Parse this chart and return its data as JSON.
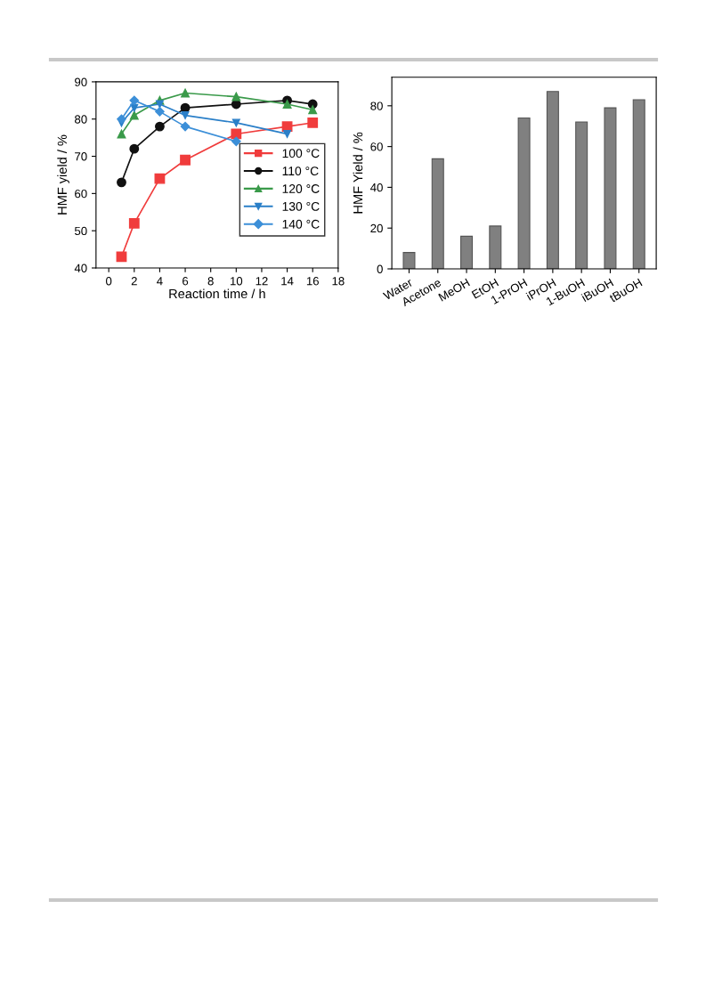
{
  "chart_data": [
    {
      "type": "line",
      "xlabel": "Reaction time / h",
      "ylabel": "HMF yield / %",
      "xlim": [
        -1,
        18
      ],
      "ylim": [
        40,
        90
      ],
      "xticks": [
        0,
        2,
        4,
        6,
        8,
        10,
        12,
        14,
        16,
        18
      ],
      "yticks": [
        40,
        50,
        60,
        70,
        80,
        90
      ],
      "legend": "center right",
      "grid": false,
      "line_style": "solid",
      "series": [
        {
          "name": "100 °C",
          "color": "#f03c3c",
          "marker": "square",
          "x": [
            1,
            2,
            4,
            6,
            10,
            14,
            16
          ],
          "values": [
            43,
            52,
            64,
            69,
            76,
            78,
            79
          ]
        },
        {
          "name": "110 °C",
          "color": "#111111",
          "marker": "circle",
          "x": [
            1,
            2,
            4,
            6,
            10,
            14,
            16
          ],
          "values": [
            63,
            72,
            78,
            83,
            84,
            85,
            84
          ]
        },
        {
          "name": "120 °C",
          "color": "#3a9a4a",
          "marker": "triangle",
          "x": [
            1,
            2,
            4,
            6,
            10,
            14,
            16
          ],
          "values": [
            76,
            81,
            85,
            87,
            86,
            84,
            82.5
          ]
        },
        {
          "name": "130 °C",
          "color": "#2a7fc8",
          "marker": "triangle_down",
          "x": [
            1,
            2,
            4,
            6,
            10,
            14
          ],
          "values": [
            79,
            83,
            84,
            81,
            79,
            76
          ]
        },
        {
          "name": "140 °C",
          "color": "#3c8fd8",
          "marker": "diamond",
          "x": [
            1,
            2,
            4,
            6,
            10
          ],
          "values": [
            80,
            85,
            82,
            78,
            74
          ]
        }
      ]
    },
    {
      "type": "bar",
      "ylabel": "HMF Yield / %",
      "categories": [
        "Water",
        "Acetone",
        "MeOH",
        "EtOH",
        "1-PrOH",
        "iPrOH",
        "1-BuOH",
        "iBuOH",
        "tBuOH"
      ],
      "values": [
        8,
        54,
        16,
        21,
        74,
        87,
        72,
        79,
        83
      ],
      "color": "#808080",
      "ylim": [
        0,
        94
      ],
      "yticks": [
        0,
        20,
        40,
        60,
        80
      ],
      "grid": false
    }
  ]
}
